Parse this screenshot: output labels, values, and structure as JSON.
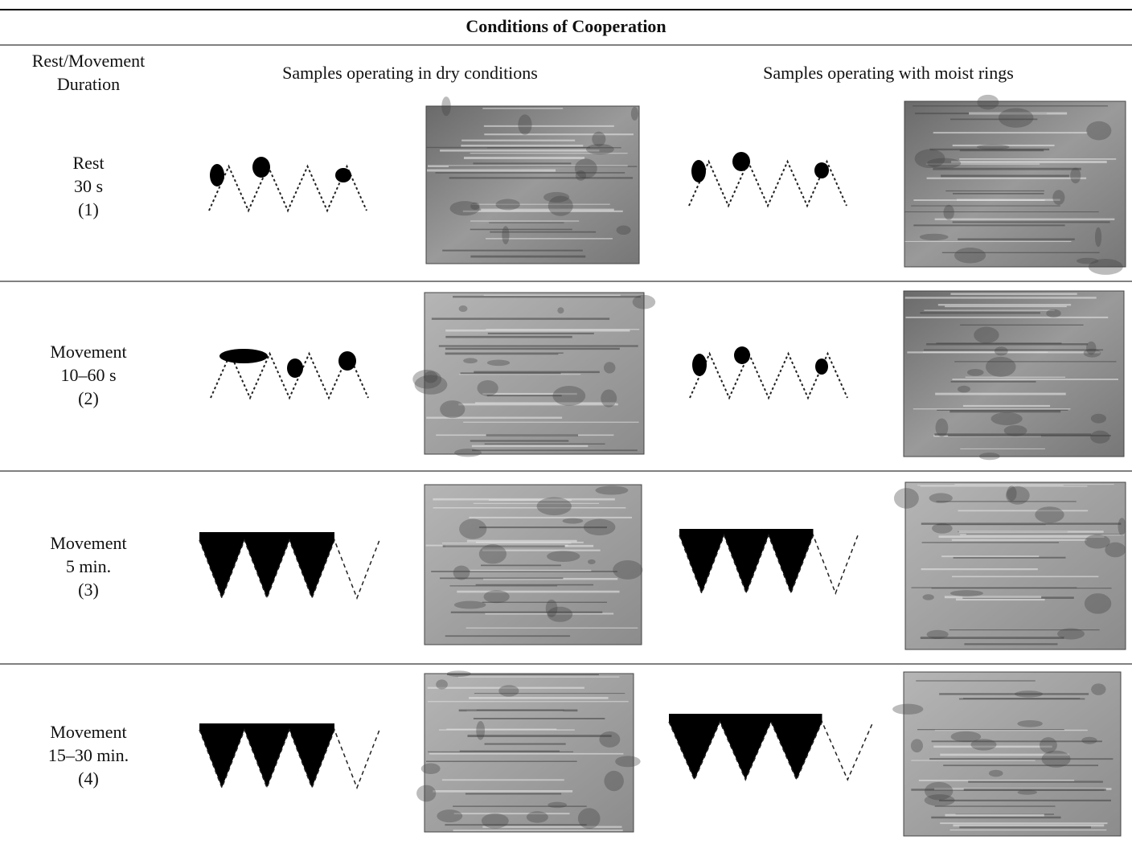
{
  "header": {
    "title": "Conditions of Cooperation"
  },
  "columns": {
    "duration": [
      "Rest/Movement",
      "Duration"
    ],
    "dry": "Samples operating in dry conditions",
    "moist": "Samples operating with moist rings"
  },
  "rows": [
    [
      "Rest",
      "30 s",
      "(1)"
    ],
    [
      "Movement",
      "10–60 s",
      "(2)"
    ],
    [
      "Movement",
      "5 min.",
      "(3)"
    ],
    [
      "Movement",
      "15–30 min.",
      "(4)"
    ]
  ]
}
